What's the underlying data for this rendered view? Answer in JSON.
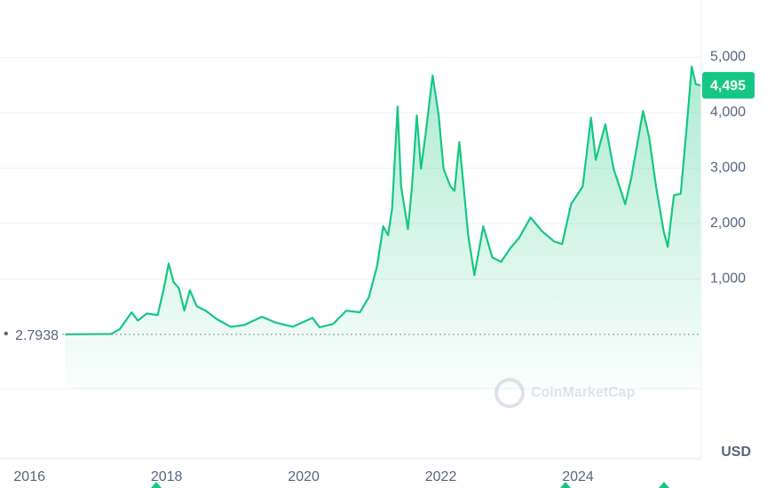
{
  "chart_data": {
    "type": "area",
    "currency": "USD",
    "watermark": "CoinMarketCap",
    "color": "#16c784",
    "x": [
      2016.52,
      2017.19,
      2017.32,
      2017.49,
      2017.58,
      2017.71,
      2017.87,
      2017.96,
      2018.03,
      2018.1,
      2018.18,
      2018.26,
      2018.34,
      2018.44,
      2018.57,
      2018.74,
      2018.94,
      2019.13,
      2019.39,
      2019.58,
      2019.84,
      2020.13,
      2020.23,
      2020.43,
      2020.62,
      2020.82,
      2020.95,
      2021.07,
      2021.16,
      2021.23,
      2021.29,
      2021.37,
      2021.42,
      2021.52,
      2021.58,
      2021.65,
      2021.71,
      2021.78,
      2021.88,
      2021.97,
      2022.04,
      2022.14,
      2022.2,
      2022.27,
      2022.32,
      2022.4,
      2022.49,
      2022.62,
      2022.75,
      2022.88,
      2023.01,
      2023.14,
      2023.31,
      2023.47,
      2023.65,
      2023.77,
      2023.9,
      2024.07,
      2024.19,
      2024.26,
      2024.4,
      2024.52,
      2024.69,
      2024.78,
      2024.95,
      2025.04,
      2025.14,
      2025.25,
      2025.31,
      2025.4,
      2025.5,
      2025.59,
      2025.66,
      2025.72,
      2025.79
    ],
    "values": [
      3,
      10,
      100,
      400,
      250,
      380,
      350,
      830,
      1280,
      950,
      830,
      430,
      800,
      510,
      430,
      270,
      140,
      170,
      320,
      220,
      140,
      300,
      130,
      190,
      430,
      400,
      670,
      1230,
      1950,
      1790,
      2270,
      4110,
      2670,
      1900,
      2670,
      3950,
      2990,
      3630,
      4670,
      3950,
      2990,
      2670,
      2590,
      3470,
      2830,
      1790,
      1070,
      1950,
      1390,
      1310,
      1550,
      1740,
      2110,
      1870,
      1680,
      1630,
      2350,
      2670,
      3910,
      3150,
      3790,
      2990,
      2350,
      2830,
      4030,
      3550,
      2670,
      1870,
      1580,
      2510,
      2540,
      3790,
      4830,
      4510,
      4495
    ],
    "start_price": 2.7938,
    "current_price": {
      "value": 4495,
      "label": "4,495"
    },
    "xlim": [
      2015.57,
      2025.8
    ],
    "xticks": [
      2016,
      2018,
      2020,
      2022,
      2024
    ],
    "ylim": [
      -1000,
      6000
    ],
    "yticks": [
      {
        "value": 1000,
        "label": "1,000"
      },
      {
        "value": 2000,
        "label": "2,000"
      },
      {
        "value": 3000,
        "label": "3,000"
      },
      {
        "value": 4000,
        "label": "4,000"
      },
      {
        "value": 5000,
        "label": "5,000"
      }
    ],
    "grid": true
  }
}
